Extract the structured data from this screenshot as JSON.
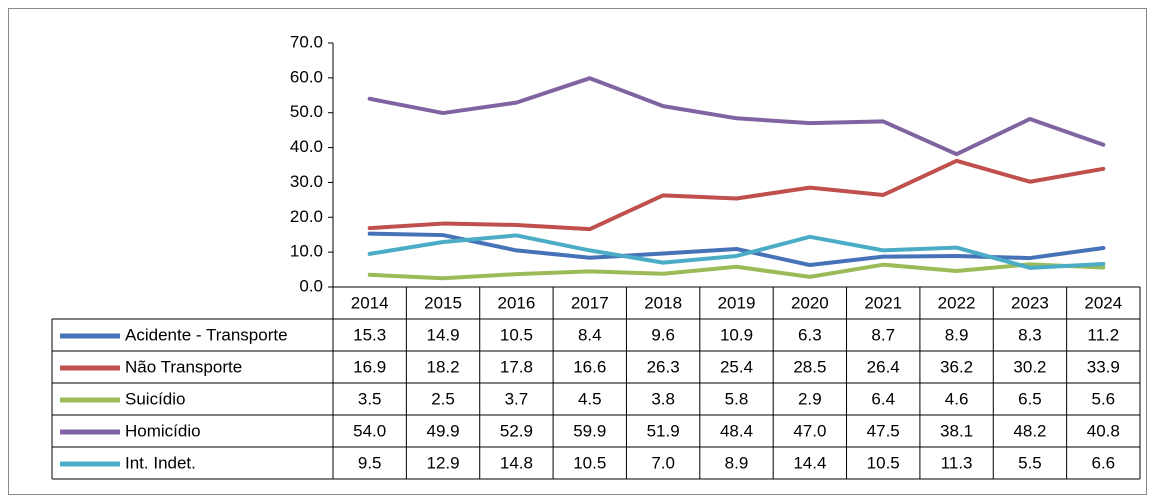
{
  "chart_data": {
    "type": "line",
    "categories": [
      "2014",
      "2015",
      "2016",
      "2017",
      "2018",
      "2019",
      "2020",
      "2021",
      "2022",
      "2023",
      "2024"
    ],
    "ylim": [
      0,
      70
    ],
    "yticks": [
      {
        "value": 0,
        "label": "0.0"
      },
      {
        "value": 10,
        "label": "10.0"
      },
      {
        "value": 20,
        "label": "20.0"
      },
      {
        "value": 30,
        "label": "30.0"
      },
      {
        "value": 40,
        "label": "40.0"
      },
      {
        "value": 50,
        "label": "50.0"
      },
      {
        "value": 60,
        "label": "60.0"
      },
      {
        "value": 70,
        "label": "70.0"
      }
    ],
    "series": [
      {
        "name": "Acidente - Transporte",
        "color": "#4672b8",
        "values": [
          15.3,
          14.9,
          10.5,
          8.4,
          9.6,
          10.9,
          6.3,
          8.7,
          8.9,
          8.3,
          11.2
        ],
        "value_labels": [
          "15.3",
          "14.9",
          "10.5",
          "8.4",
          "9.6",
          "10.9",
          "6.3",
          "8.7",
          "8.9",
          "8.3",
          "11.2"
        ]
      },
      {
        "name": "Não Transporte",
        "color": "#c0504d",
        "values": [
          16.9,
          18.2,
          17.8,
          16.6,
          26.3,
          25.4,
          28.5,
          26.4,
          36.2,
          30.2,
          33.9
        ],
        "value_labels": [
          "16.9",
          "18.2",
          "17.8",
          "16.6",
          "26.3",
          "25.4",
          "28.5",
          "26.4",
          "36.2",
          "30.2",
          "33.9"
        ]
      },
      {
        "name": "Suicídio",
        "color": "#9bbb59",
        "values": [
          3.5,
          2.5,
          3.7,
          4.5,
          3.8,
          5.8,
          2.9,
          6.4,
          4.6,
          6.5,
          5.6
        ],
        "value_labels": [
          "3.5",
          "2.5",
          "3.7",
          "4.5",
          "3.8",
          "5.8",
          "2.9",
          "6.4",
          "4.6",
          "6.5",
          "5.6"
        ]
      },
      {
        "name": "Homicídio",
        "color": "#8064a2",
        "values": [
          54.0,
          49.9,
          52.9,
          59.9,
          51.9,
          48.4,
          47.0,
          47.5,
          38.1,
          48.2,
          40.8
        ],
        "value_labels": [
          "54.0",
          "49.9",
          "52.9",
          "59.9",
          "51.9",
          "48.4",
          "47.0",
          "47.5",
          "38.1",
          "48.2",
          "40.8"
        ]
      },
      {
        "name": "Int. Indet.",
        "color": "#4bacc6",
        "values": [
          9.5,
          12.9,
          14.8,
          10.5,
          7.0,
          8.9,
          14.4,
          10.5,
          11.3,
          5.5,
          6.6
        ],
        "value_labels": [
          "9.5",
          "12.9",
          "14.8",
          "10.5",
          "7.0",
          "8.9",
          "14.4",
          "10.5",
          "11.3",
          "5.5",
          "6.6"
        ]
      }
    ]
  }
}
